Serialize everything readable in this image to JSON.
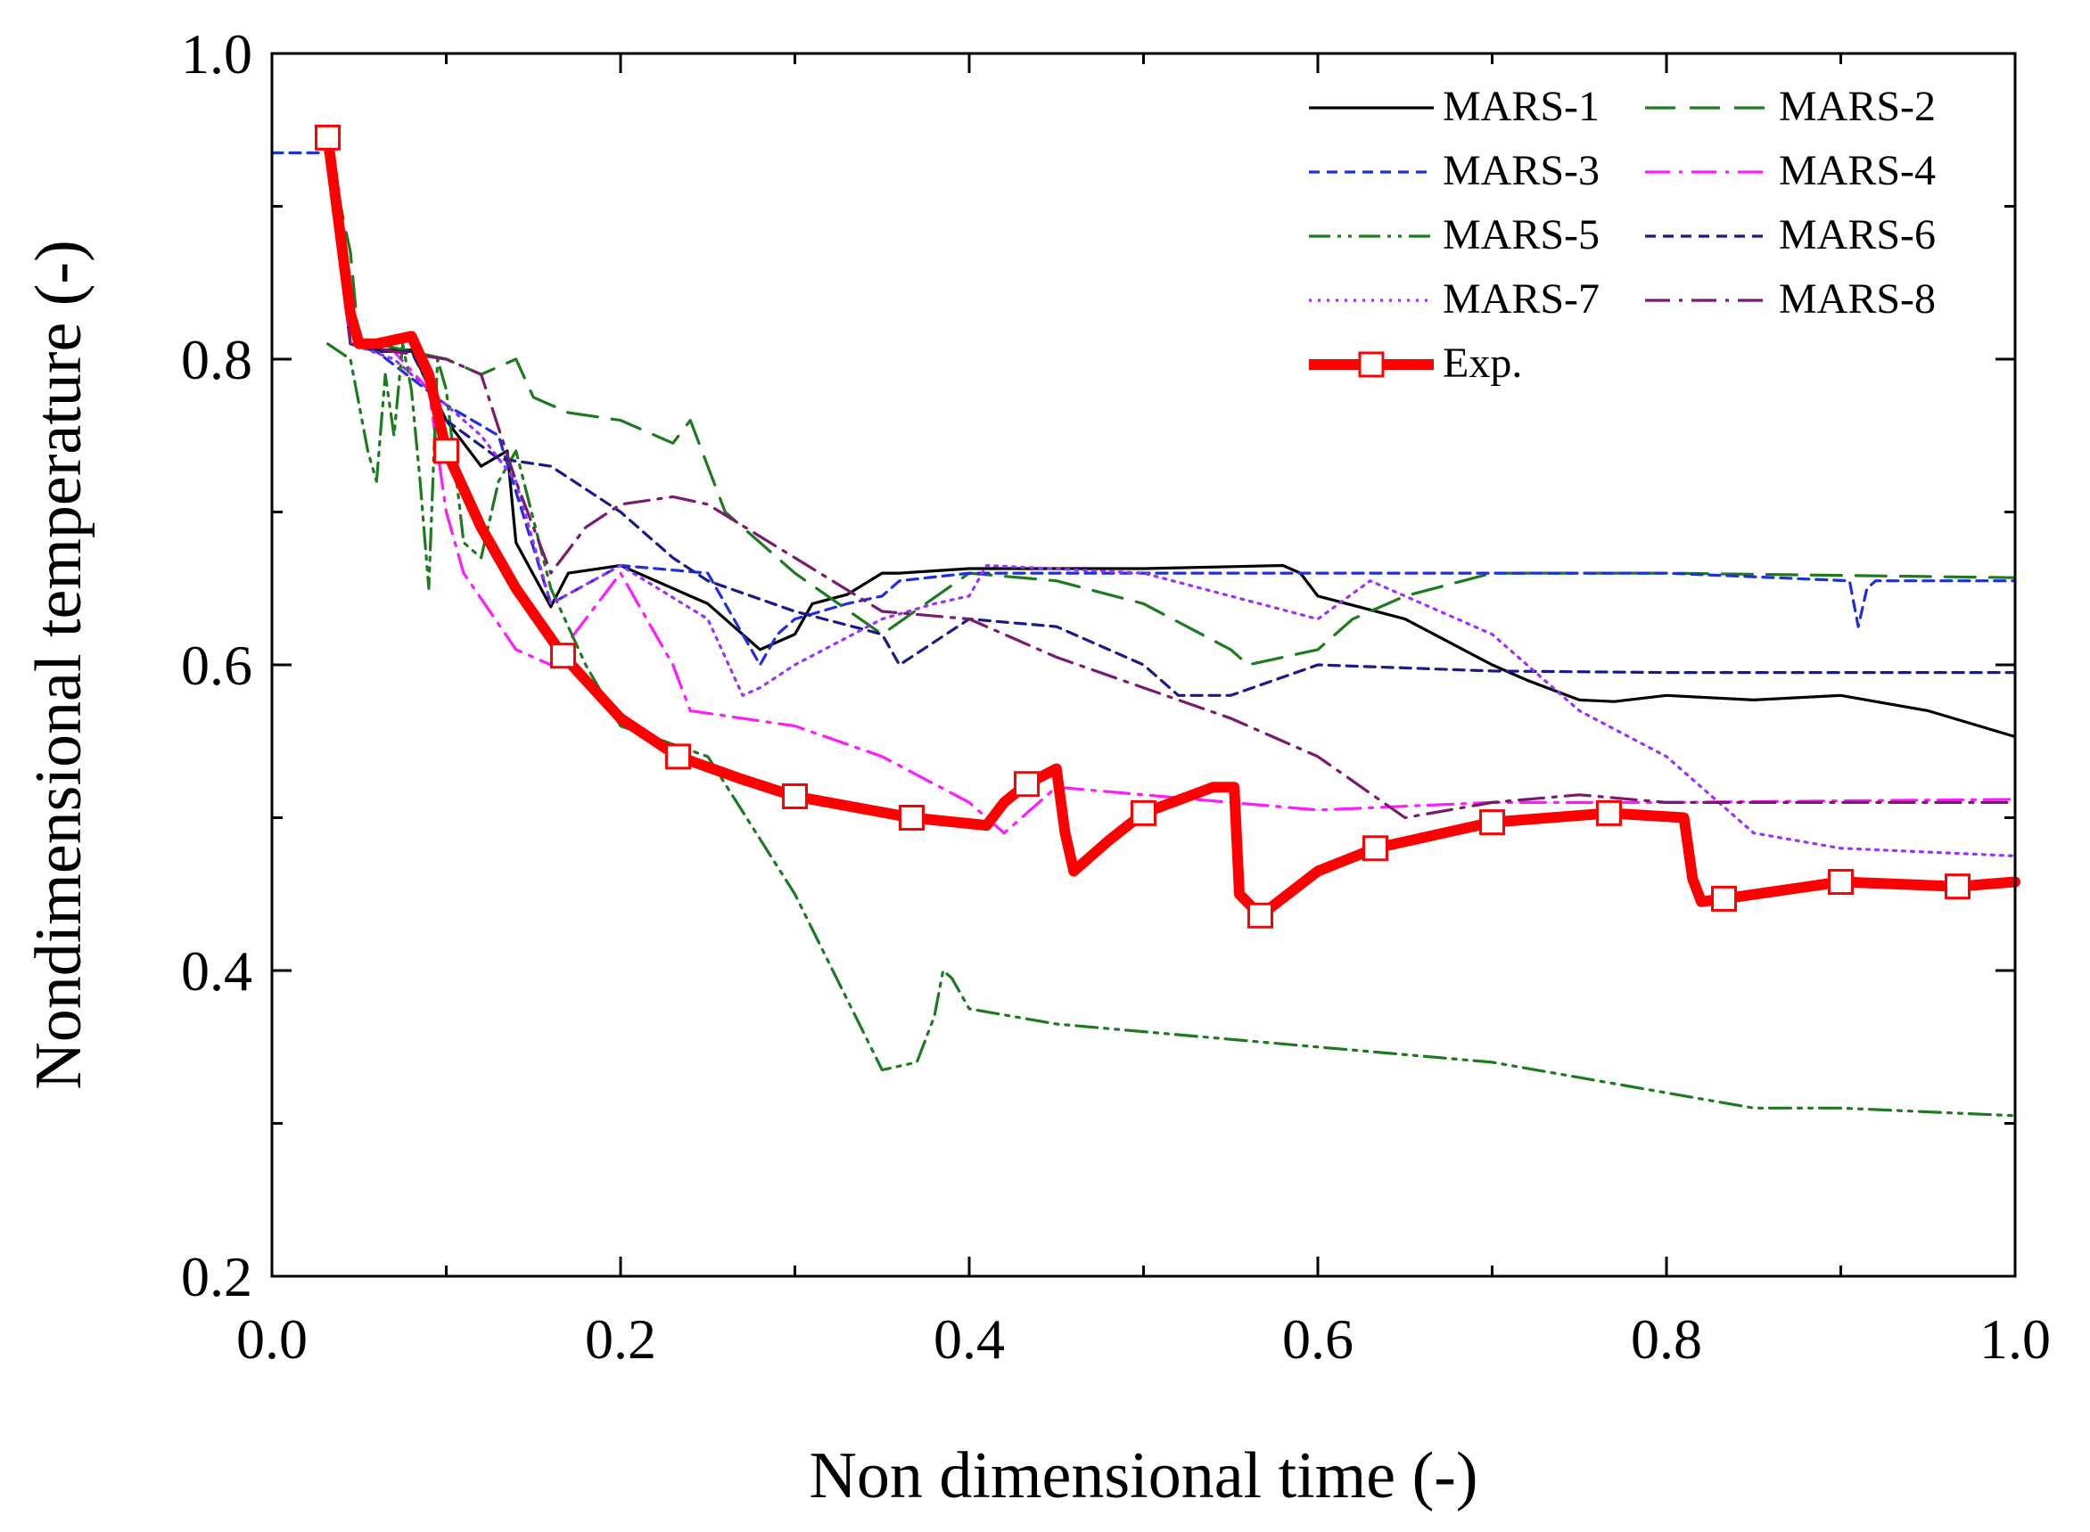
{
  "chart_data": {
    "type": "line",
    "title": "",
    "xlabel": "Non dimensional time (-)",
    "ylabel": "Nondimensional temperature (-)",
    "xlim": [
      0.0,
      1.0
    ],
    "ylim": [
      0.2,
      1.0
    ],
    "x_ticks": [
      0.0,
      0.2,
      0.4,
      0.6,
      0.8,
      1.0
    ],
    "x_tick_labels": [
      "0.0",
      "0.2",
      "0.4",
      "0.6",
      "0.8",
      "1.0"
    ],
    "y_ticks": [
      0.2,
      0.4,
      0.6,
      0.8,
      1.0
    ],
    "y_tick_labels": [
      "0.2",
      "0.4",
      "0.6",
      "0.8",
      "1.0"
    ],
    "grid": false,
    "legend": {
      "placement": "top-right",
      "columns": 2
    },
    "series": [
      {
        "name": "MARS-1",
        "color": "#000000",
        "dash": "solid",
        "x": [
          0.032,
          0.045,
          0.06,
          0.08,
          0.1,
          0.12,
          0.135,
          0.14,
          0.16,
          0.17,
          0.2,
          0.25,
          0.28,
          0.29,
          0.3,
          0.31,
          0.33,
          0.35,
          0.36,
          0.4,
          0.5,
          0.58,
          0.59,
          0.6,
          0.65,
          0.7,
          0.72,
          0.75,
          0.77,
          0.8,
          0.85,
          0.9,
          0.95,
          1.0
        ],
        "y": [
          0.94,
          0.81,
          0.806,
          0.806,
          0.76,
          0.73,
          0.74,
          0.68,
          0.638,
          0.66,
          0.665,
          0.64,
          0.61,
          0.615,
          0.62,
          0.64,
          0.646,
          0.66,
          0.66,
          0.663,
          0.663,
          0.665,
          0.66,
          0.645,
          0.63,
          0.6,
          0.59,
          0.577,
          0.576,
          0.58,
          0.577,
          0.58,
          0.57,
          0.553
        ]
      },
      {
        "name": "MARS-2",
        "color": "#1e7a1e",
        "dash": "long",
        "x": [
          0.032,
          0.045,
          0.05,
          0.06,
          0.08,
          0.1,
          0.12,
          0.14,
          0.15,
          0.17,
          0.2,
          0.23,
          0.24,
          0.26,
          0.3,
          0.35,
          0.4,
          0.45,
          0.5,
          0.55,
          0.56,
          0.6,
          0.62,
          0.65,
          0.7,
          0.8,
          1.0
        ],
        "y": [
          0.94,
          0.87,
          0.81,
          0.81,
          0.805,
          0.8,
          0.79,
          0.8,
          0.775,
          0.765,
          0.76,
          0.745,
          0.76,
          0.7,
          0.66,
          0.62,
          0.66,
          0.655,
          0.64,
          0.61,
          0.6,
          0.61,
          0.63,
          0.645,
          0.66,
          0.66,
          0.657
        ]
      },
      {
        "name": "MARS-3",
        "color": "#1f2fdc",
        "dash": "short",
        "x": [
          0.0,
          0.032,
          0.045,
          0.06,
          0.1,
          0.13,
          0.16,
          0.2,
          0.25,
          0.28,
          0.29,
          0.3,
          0.33,
          0.35,
          0.36,
          0.4,
          0.5,
          0.6,
          0.8,
          0.905,
          0.91,
          0.915,
          0.92,
          1.0
        ],
        "y": [
          0.935,
          0.935,
          0.81,
          0.805,
          0.77,
          0.75,
          0.64,
          0.665,
          0.66,
          0.6,
          0.62,
          0.63,
          0.64,
          0.645,
          0.655,
          0.66,
          0.66,
          0.66,
          0.66,
          0.655,
          0.625,
          0.65,
          0.655,
          0.655
        ]
      },
      {
        "name": "MARS-4",
        "color": "#ff1aff",
        "dash": "dashdot",
        "x": [
          0.032,
          0.045,
          0.07,
          0.09,
          0.1,
          0.11,
          0.14,
          0.16,
          0.2,
          0.21,
          0.23,
          0.24,
          0.3,
          0.35,
          0.4,
          0.42,
          0.45,
          0.5,
          0.55,
          0.6,
          0.7,
          0.8,
          1.0
        ],
        "y": [
          0.94,
          0.81,
          0.805,
          0.78,
          0.7,
          0.66,
          0.61,
          0.6,
          0.66,
          0.64,
          0.6,
          0.57,
          0.56,
          0.54,
          0.51,
          0.49,
          0.52,
          0.515,
          0.51,
          0.505,
          0.51,
          0.51,
          0.512
        ]
      },
      {
        "name": "MARS-5",
        "color": "#1e7a1e",
        "dash": "dashdotdot",
        "x": [
          0.032,
          0.045,
          0.05,
          0.055,
          0.06,
          0.065,
          0.07,
          0.075,
          0.08,
          0.085,
          0.09,
          0.095,
          0.1,
          0.11,
          0.12,
          0.13,
          0.14,
          0.16,
          0.18,
          0.2,
          0.25,
          0.3,
          0.35,
          0.37,
          0.38,
          0.385,
          0.39,
          0.4,
          0.45,
          0.5,
          0.6,
          0.7,
          0.8,
          0.85,
          0.9,
          1.0
        ],
        "y": [
          0.81,
          0.8,
          0.77,
          0.74,
          0.72,
          0.79,
          0.75,
          0.81,
          0.78,
          0.72,
          0.65,
          0.8,
          0.78,
          0.68,
          0.67,
          0.72,
          0.74,
          0.65,
          0.6,
          0.56,
          0.54,
          0.45,
          0.335,
          0.34,
          0.37,
          0.4,
          0.395,
          0.375,
          0.365,
          0.36,
          0.35,
          0.34,
          0.32,
          0.31,
          0.31,
          0.305
        ]
      },
      {
        "name": "MARS-6",
        "color": "#1a1a8c",
        "dash": "short",
        "x": [
          0.032,
          0.045,
          0.06,
          0.08,
          0.1,
          0.13,
          0.16,
          0.2,
          0.22,
          0.23,
          0.25,
          0.3,
          0.35,
          0.36,
          0.4,
          0.45,
          0.5,
          0.52,
          0.55,
          0.6,
          0.7,
          0.8,
          1.0
        ],
        "y": [
          0.94,
          0.81,
          0.805,
          0.805,
          0.76,
          0.735,
          0.73,
          0.7,
          0.68,
          0.67,
          0.655,
          0.635,
          0.62,
          0.6,
          0.63,
          0.625,
          0.6,
          0.58,
          0.58,
          0.6,
          0.596,
          0.595,
          0.595
        ]
      },
      {
        "name": "MARS-7",
        "color": "#9b30ff",
        "dash": "dot",
        "x": [
          0.032,
          0.045,
          0.07,
          0.1,
          0.12,
          0.14,
          0.16,
          0.2,
          0.25,
          0.27,
          0.28,
          0.3,
          0.35,
          0.38,
          0.4,
          0.41,
          0.5,
          0.6,
          0.63,
          0.7,
          0.75,
          0.8,
          0.85,
          0.9,
          1.0
        ],
        "y": [
          0.94,
          0.81,
          0.8,
          0.77,
          0.75,
          0.72,
          0.64,
          0.665,
          0.63,
          0.58,
          0.585,
          0.6,
          0.63,
          0.64,
          0.645,
          0.665,
          0.66,
          0.63,
          0.655,
          0.62,
          0.57,
          0.54,
          0.49,
          0.48,
          0.475
        ]
      },
      {
        "name": "MARS-8",
        "color": "#7a1a6e",
        "dash": "dashdot",
        "x": [
          0.032,
          0.045,
          0.07,
          0.1,
          0.12,
          0.14,
          0.16,
          0.18,
          0.2,
          0.23,
          0.25,
          0.3,
          0.35,
          0.4,
          0.45,
          0.5,
          0.55,
          0.6,
          0.65,
          0.7,
          0.75,
          0.8,
          1.0
        ],
        "y": [
          0.94,
          0.81,
          0.805,
          0.8,
          0.79,
          0.72,
          0.66,
          0.69,
          0.705,
          0.71,
          0.705,
          0.67,
          0.635,
          0.63,
          0.605,
          0.585,
          0.565,
          0.54,
          0.5,
          0.51,
          0.515,
          0.51,
          0.51
        ]
      },
      {
        "name": "Exp.",
        "color": "#ff0000",
        "dash": "solid",
        "marker": "square",
        "x": [
          0.032,
          0.045,
          0.05,
          0.06,
          0.08,
          0.09,
          0.1,
          0.12,
          0.14,
          0.167,
          0.2,
          0.233,
          0.27,
          0.3,
          0.367,
          0.41,
          0.42,
          0.433,
          0.45,
          0.455,
          0.46,
          0.48,
          0.5,
          0.54,
          0.552,
          0.555,
          0.567,
          0.6,
          0.633,
          0.7,
          0.767,
          0.81,
          0.815,
          0.82,
          0.833,
          0.9,
          0.967,
          1.0
        ],
        "y": [
          0.945,
          0.83,
          0.81,
          0.81,
          0.815,
          0.79,
          0.74,
          0.69,
          0.65,
          0.606,
          0.565,
          0.54,
          0.525,
          0.514,
          0.5,
          0.495,
          0.51,
          0.522,
          0.532,
          0.49,
          0.465,
          0.485,
          0.503,
          0.52,
          0.52,
          0.45,
          0.436,
          0.465,
          0.48,
          0.497,
          0.503,
          0.5,
          0.46,
          0.445,
          0.447,
          0.458,
          0.455,
          0.458
        ],
        "marker_x": [
          0.032,
          0.1,
          0.167,
          0.233,
          0.3,
          0.367,
          0.433,
          0.5,
          0.567,
          0.633,
          0.7,
          0.767,
          0.833,
          0.9,
          0.967
        ],
        "marker_y": [
          0.945,
          0.74,
          0.606,
          0.54,
          0.514,
          0.5,
          0.522,
          0.503,
          0.436,
          0.48,
          0.497,
          0.503,
          0.447,
          0.458,
          0.455
        ]
      }
    ]
  }
}
